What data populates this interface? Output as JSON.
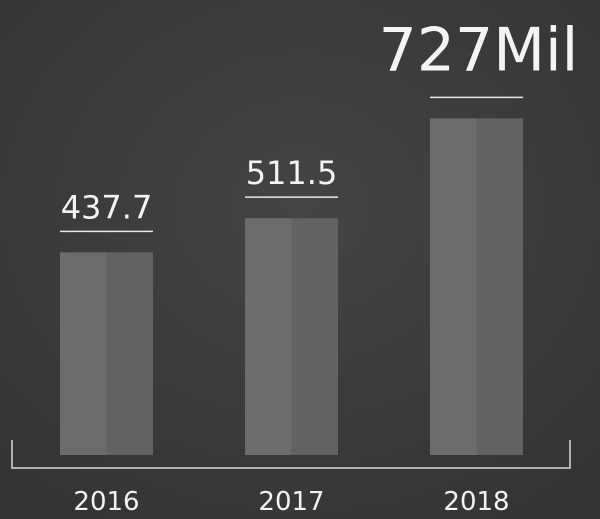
{
  "chart_data": {
    "type": "bar",
    "categories": [
      "2016",
      "2017",
      "2018"
    ],
    "values": [
      437.7,
      511.5,
      727
    ],
    "value_labels": [
      "437.7",
      "511.5",
      "727Mil"
    ],
    "color": "#6c6c6c"
  }
}
